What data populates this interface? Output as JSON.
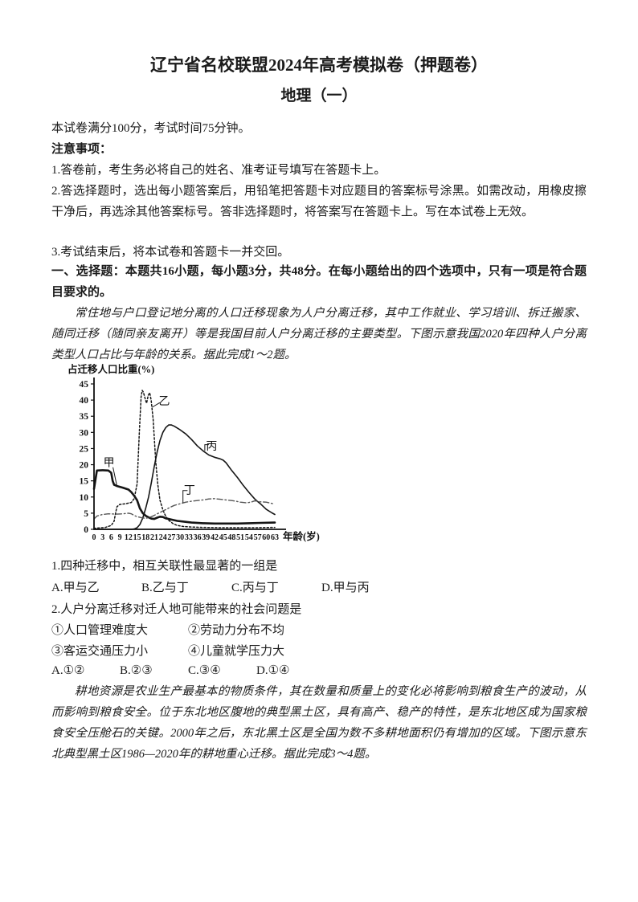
{
  "doc": {
    "title": "辽宁省名校联盟2024年高考模拟卷（押题卷）",
    "subtitle": "地理（一）",
    "exam_info": "本试卷满分100分，考试时间75分钟。",
    "notes_header": "注意事项：",
    "note1": "1.答卷前，考生务必将自己的姓名、准考证号填写在答题卡上。",
    "note2": "2.答选择题时，选出每小题答案后，用铅笔把答题卡对应题目的答案标号涂黑。如需改动，用橡皮擦干净后，再选涂其他答案标号。答非选择题时，将答案写在答题卡上。写在本试卷上无效。",
    "note3": "3.考试结束后，将本试卷和答题卡一并交回。",
    "section1_header": "一、选择题：本题共16小题，每小题3分，共48分。在每小题给出的四个选项中，只有一项是符合题目要求的。",
    "passage1": "常住地与户口登记地分离的人口迁移现象为人户分离迁移，其中工作就业、学习培训、拆迁搬家、随同迁移（随同亲友离开）等是我国目前人户分离迁移的主要类型。下图示意我国2020年四种人户分离类型人口占比与年龄的关系。据此完成1～2题。",
    "passage2": "耕地资源是农业生产最基本的物质条件，其在数量和质量上的变化必将影响到粮食生产的波动，从而影响到粮食安全。位于东北地区腹地的典型黑土区，具有高产、稳产的特性，是东北地区成为国家粮食安全压舱石的关键。2000年之后，东北黑土区是全国为数不多耕地面积仍有增加的区域。下图示意东北典型黑土区1986—2020年的耕地重心迁移。据此完成3～4题。"
  },
  "q1": {
    "stem": "1.四种迁移中，相互关联性最显著的一组是",
    "options": [
      "A.甲与乙",
      "B.乙与丁",
      "C.丙与丁",
      "D.甲与丙"
    ]
  },
  "q2": {
    "stem": "2.人户分离迁移对迁人地可能带来的社会问题是",
    "items": [
      "①人口管理难度大",
      "②劳动力分布不均",
      "③客运交通压力小",
      "④儿童就学压力大"
    ],
    "options": [
      "A.①②",
      "B.②③",
      "C.③④",
      "D.①④"
    ]
  },
  "chart_data": {
    "type": "line",
    "title": "",
    "ylabel": "占迁移人口比重(%)",
    "xlabel": "年龄(岁)",
    "ylim": [
      0,
      45
    ],
    "xlim": [
      0,
      63
    ],
    "yticks": [
      0,
      5,
      10,
      15,
      20,
      25,
      30,
      35,
      40,
      45
    ],
    "xticks": [
      0,
      3,
      6,
      9,
      12,
      15,
      18,
      21,
      24,
      27,
      30,
      33,
      36,
      39,
      42,
      45,
      48,
      51,
      54,
      57,
      60,
      63
    ],
    "grid": false,
    "legend_position": "inline-curve-labels",
    "line_color": "#151515",
    "series": [
      {
        "id": "jia",
        "name": "甲",
        "style": "thick-solid",
        "points": [
          [
            0,
            12.5
          ],
          [
            1,
            18.2
          ],
          [
            3,
            18.3
          ],
          [
            5,
            18.2
          ],
          [
            6,
            17.5
          ],
          [
            6.5,
            15
          ],
          [
            7,
            13.8
          ],
          [
            8,
            13.4
          ],
          [
            10,
            12.9
          ],
          [
            12,
            12.3
          ],
          [
            13,
            11.5
          ],
          [
            14,
            10.4
          ],
          [
            15,
            9
          ],
          [
            16,
            6.5
          ],
          [
            17,
            5
          ],
          [
            18,
            4.2
          ],
          [
            19,
            3.7
          ],
          [
            20,
            3.3
          ],
          [
            21,
            3.2
          ],
          [
            22,
            3.6
          ],
          [
            23,
            3.9
          ],
          [
            24,
            3.8
          ],
          [
            25,
            3.4
          ],
          [
            27,
            3
          ],
          [
            29,
            2.6
          ],
          [
            31,
            2.4
          ],
          [
            34,
            2.1
          ],
          [
            38,
            1.9
          ],
          [
            42,
            1.8
          ],
          [
            46,
            1.8
          ],
          [
            50,
            1.8
          ],
          [
            54,
            1.9
          ],
          [
            58,
            2
          ],
          [
            63,
            2.1
          ]
        ]
      },
      {
        "id": "yi",
        "name": "乙",
        "style": "dotted",
        "points": [
          [
            0,
            0.3
          ],
          [
            4,
            0.6
          ],
          [
            6,
            1.2
          ],
          [
            7,
            2.5
          ],
          [
            7.5,
            5
          ],
          [
            8,
            7
          ],
          [
            9,
            7.7
          ],
          [
            11,
            7.9
          ],
          [
            13,
            8.3
          ],
          [
            14,
            9.5
          ],
          [
            15,
            14
          ],
          [
            15.8,
            30
          ],
          [
            16.4,
            41
          ],
          [
            16.8,
            43
          ],
          [
            17.2,
            42.5
          ],
          [
            17.8,
            40.5
          ],
          [
            18.3,
            39
          ],
          [
            18.9,
            41.5
          ],
          [
            19.4,
            42.3
          ],
          [
            19.9,
            40
          ],
          [
            20.6,
            34
          ],
          [
            21.5,
            21
          ],
          [
            22.2,
            14
          ],
          [
            23,
            9
          ],
          [
            24,
            6
          ],
          [
            25,
            4
          ],
          [
            26,
            2.8
          ],
          [
            27.5,
            1.8
          ],
          [
            29,
            1.2
          ],
          [
            31,
            0.9
          ],
          [
            34,
            0.7
          ],
          [
            38,
            0.6
          ],
          [
            44,
            0.5
          ],
          [
            50,
            0.5
          ],
          [
            56,
            0.5
          ],
          [
            63,
            0.6
          ]
        ]
      },
      {
        "id": "bing",
        "name": "丙",
        "style": "solid",
        "points": [
          [
            0,
            0
          ],
          [
            13,
            0
          ],
          [
            14,
            0.1
          ],
          [
            15,
            0.5
          ],
          [
            16,
            1.5
          ],
          [
            17,
            3.5
          ],
          [
            18,
            6.5
          ],
          [
            19,
            10
          ],
          [
            20,
            14.5
          ],
          [
            21,
            19.5
          ],
          [
            22,
            24
          ],
          [
            23,
            27.5
          ],
          [
            24,
            30
          ],
          [
            25,
            31.5
          ],
          [
            26,
            32.3
          ],
          [
            27,
            32.3
          ],
          [
            28,
            31.9
          ],
          [
            30,
            30.8
          ],
          [
            32,
            29.5
          ],
          [
            34,
            27.8
          ],
          [
            36,
            25.8
          ],
          [
            38,
            24.3
          ],
          [
            40,
            23
          ],
          [
            42,
            22.3
          ],
          [
            44,
            21.8
          ],
          [
            45,
            21.4
          ],
          [
            46,
            20.6
          ],
          [
            48,
            18.2
          ],
          [
            50,
            16
          ],
          [
            52,
            13.6
          ],
          [
            54,
            11.4
          ],
          [
            56,
            9.4
          ],
          [
            57,
            8.6
          ],
          [
            58,
            7.9
          ],
          [
            60,
            6.2
          ],
          [
            62,
            5.1
          ],
          [
            63,
            4.6
          ]
        ]
      },
      {
        "id": "ding",
        "name": "丁",
        "style": "dash-dot",
        "points": [
          [
            0,
            3.2
          ],
          [
            1,
            4.1
          ],
          [
            3,
            4.6
          ],
          [
            5,
            4.8
          ],
          [
            8,
            4.7
          ],
          [
            10,
            4.8
          ],
          [
            12,
            5
          ],
          [
            13,
            4.8
          ],
          [
            14,
            4.3
          ],
          [
            15,
            3.9
          ],
          [
            16,
            3.7
          ],
          [
            17,
            3.5
          ],
          [
            18,
            3.4
          ],
          [
            19,
            3.6
          ],
          [
            20,
            3.9
          ],
          [
            21,
            4.3
          ],
          [
            22,
            4.8
          ],
          [
            23,
            5.2
          ],
          [
            24,
            5.7
          ],
          [
            25,
            6.1
          ],
          [
            26,
            6.6
          ],
          [
            27,
            7
          ],
          [
            28,
            7.4
          ],
          [
            30,
            7.9
          ],
          [
            32,
            8.4
          ],
          [
            34,
            8.7
          ],
          [
            36,
            8.9
          ],
          [
            38,
            9.1
          ],
          [
            40,
            9.4
          ],
          [
            42,
            9.5
          ],
          [
            44,
            9.3
          ],
          [
            46,
            9.1
          ],
          [
            48,
            8.9
          ],
          [
            50,
            8.6
          ],
          [
            51,
            8.4
          ],
          [
            52,
            8.3
          ],
          [
            53,
            8.2
          ],
          [
            54,
            8.3
          ],
          [
            55,
            8.5
          ],
          [
            56,
            8.8
          ],
          [
            57,
            8.7
          ],
          [
            58,
            8.5
          ],
          [
            60,
            8.4
          ],
          [
            61,
            8.2
          ],
          [
            62,
            8
          ],
          [
            63,
            7.8
          ]
        ]
      }
    ],
    "curve_labels": [
      {
        "text": "甲",
        "age": 5.2,
        "value": 20.8,
        "leader": [
          [
            6.6,
            19.2
          ],
          [
            7.9,
            13.8
          ]
        ]
      },
      {
        "text": "乙",
        "age": 24.5,
        "value": 39.8,
        "leader": [
          [
            22.9,
            39.2
          ],
          [
            20.3,
            37.8
          ]
        ]
      },
      {
        "text": "丙",
        "age": 41,
        "value": 25.8,
        "leader": [
          [
            40,
            26.2
          ],
          [
            38.6,
            26.2
          ],
          [
            38.6,
            24.3
          ]
        ]
      },
      {
        "text": "丁",
        "age": 33.3,
        "value": 12.2,
        "leader": [
          [
            32.6,
            12
          ],
          [
            31,
            12
          ],
          [
            31,
            8.2
          ]
        ]
      }
    ]
  }
}
